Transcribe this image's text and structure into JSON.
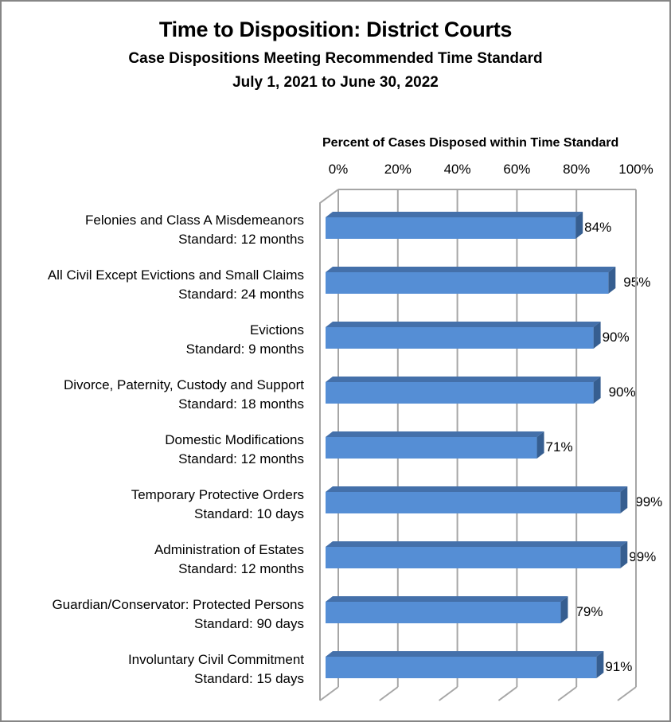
{
  "chart_data": {
    "type": "bar",
    "orientation": "horizontal",
    "style": "3d-clustered",
    "title": "Time to Disposition: District Courts",
    "subtitle": "Case Dispositions Meeting Recommended Time Standard",
    "subtitle2": "July 1, 2021 to June 30, 2022",
    "xlabel": "Percent of Cases Disposed within Time Standard",
    "xlabel_position": "top",
    "ylabel": "",
    "xlim": [
      0,
      100
    ],
    "x_ticks": [
      "0%",
      "20%",
      "40%",
      "60%",
      "80%",
      "100%"
    ],
    "grid": true,
    "legend": "none",
    "categories": [
      {
        "name": "Felonies and Class A Misdemeanors",
        "standard": "Standard: 12 months"
      },
      {
        "name": "All Civil Except Evictions and Small Claims",
        "standard": "Standard: 24 months"
      },
      {
        "name": "Evictions",
        "standard": "Standard: 9 months"
      },
      {
        "name": "Divorce, Paternity, Custody and Support",
        "standard": "Standard: 18 months"
      },
      {
        "name": "Domestic Modifications",
        "standard": "Standard: 12 months"
      },
      {
        "name": "Temporary Protective Orders",
        "standard": "Standard: 10 days"
      },
      {
        "name": "Administration of Estates",
        "standard": "Standard: 12 months"
      },
      {
        "name": "Guardian/Conservator: Protected Persons",
        "standard": "Standard: 90 days"
      },
      {
        "name": "Involuntary Civil Commitment",
        "standard": "Standard: 15 days"
      }
    ],
    "values": [
      84,
      95,
      90,
      90,
      71,
      99,
      99,
      79,
      91
    ],
    "data_labels": [
      "84%",
      "95%",
      "90%",
      "90%",
      "71%",
      "99%",
      "99%",
      "79%",
      "91%"
    ],
    "colors": {
      "bar_front": "#558ed5",
      "bar_top": "#4470aa",
      "bar_side": "#365e90",
      "gridline": "#a6a6a6",
      "border": "#868686"
    }
  }
}
